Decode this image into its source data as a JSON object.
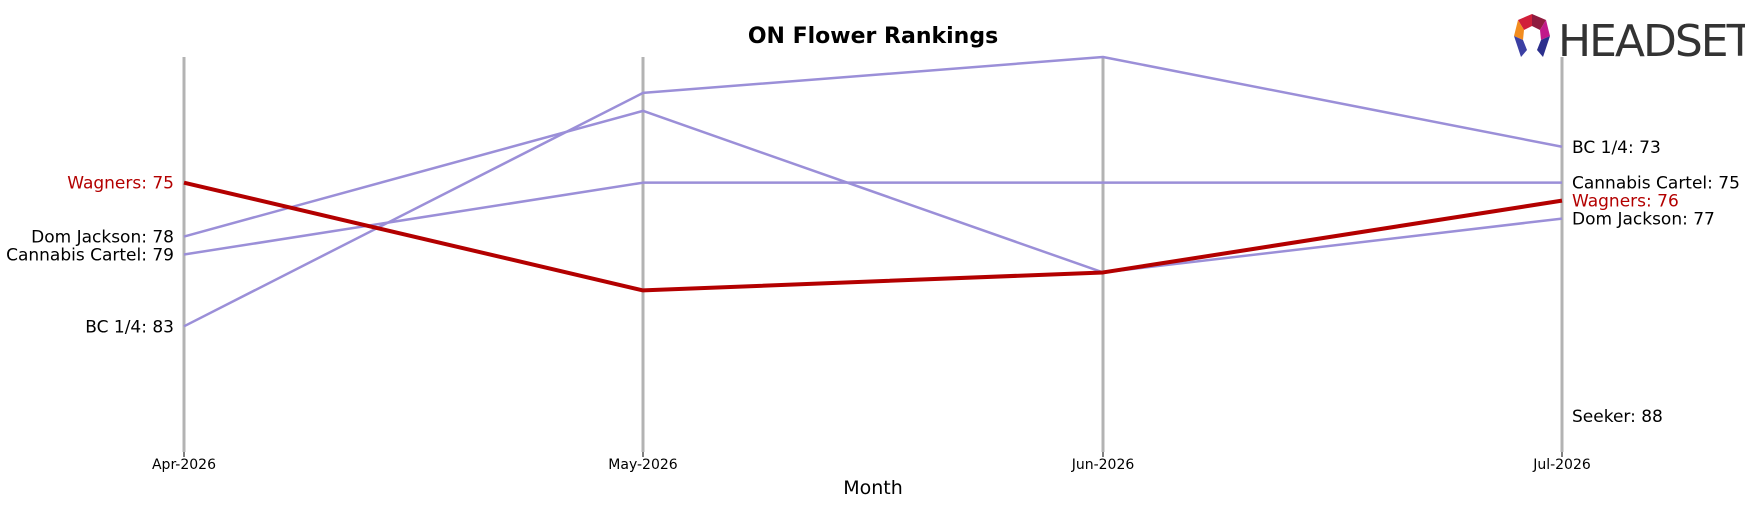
{
  "chart_data": {
    "type": "line",
    "title": "ON Flower Rankings",
    "xlabel": "Month",
    "ylabel": "",
    "x": [
      "Apr-2026",
      "May-2026",
      "Jun-2026",
      "Jul-2026"
    ],
    "y_inverted": true,
    "ylim": [
      90,
      68
    ],
    "grid": "vertical lines at each month",
    "highlight_color": "#b30000",
    "default_color": "#9b8fd8",
    "series": [
      {
        "name": "Wagners",
        "values": [
          75,
          81,
          80,
          76
        ],
        "highlight": true,
        "start_label": "Wagners: 75",
        "end_label": "Wagners: 76"
      },
      {
        "name": "BC 1/4",
        "values": [
          83,
          70,
          68,
          73
        ],
        "highlight": false,
        "start_label": "BC 1/4: 83",
        "end_label": "BC 1/4: 73"
      },
      {
        "name": "Dom Jackson",
        "values": [
          78,
          71,
          80,
          77
        ],
        "highlight": false,
        "start_label": "Dom Jackson: 78",
        "end_label": "Dom Jackson: 77"
      },
      {
        "name": "Cannabis Cartel",
        "values": [
          79,
          75,
          75,
          75
        ],
        "highlight": false,
        "start_label": "Cannabis Cartel: 79",
        "end_label": "Cannabis Cartel: 75"
      },
      {
        "name": "Seeker",
        "values": [
          null,
          null,
          null,
          88
        ],
        "highlight": false,
        "start_label": "",
        "end_label": "Seeker: 88"
      }
    ]
  },
  "logo": {
    "text": "HEADSET"
  }
}
